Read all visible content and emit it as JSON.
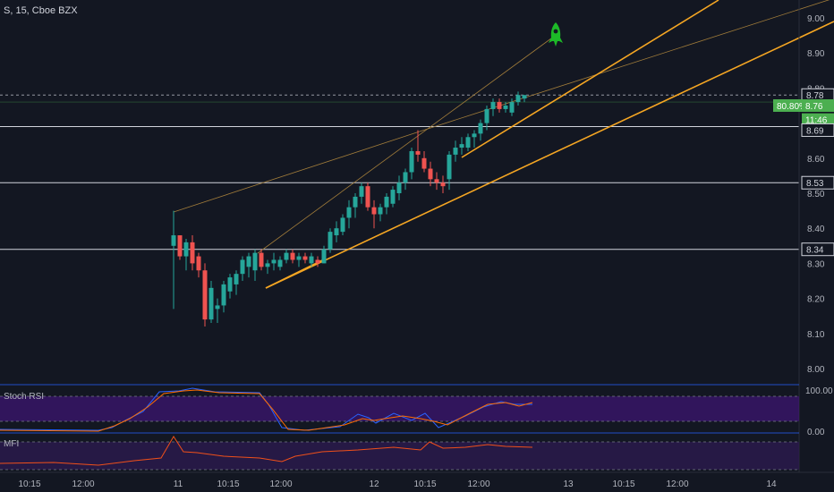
{
  "symbol_title": "S, 15, Cboe BZX",
  "colors": {
    "background": "#131722",
    "up": "#26a69a",
    "down": "#ef5350",
    "channel": "#f5a623",
    "fib_line": "#a17c3a",
    "hline": "#d1d4dc",
    "stoch_k": "#2962ff",
    "stoch_d": "#ff6d00",
    "stoch_band": "#4a148c",
    "mfi_line": "#f0501a",
    "mfi_band": "#2d1b52",
    "pct_badge": "#4caf50",
    "rocket": "#1db928"
  },
  "price_axis": {
    "ticks": [
      "9.00",
      "8.90",
      "8.80",
      "8.70",
      "8.60",
      "8.50",
      "8.40",
      "8.30",
      "8.20",
      "8.10",
      "8.00"
    ],
    "price_labels": [
      {
        "text": "8.78",
        "style": "box"
      },
      {
        "text": "80.80%",
        "style": "badge"
      },
      {
        "text": "8.76",
        "style": "badge"
      },
      {
        "text": "11:46",
        "style": "badge"
      },
      {
        "text": "8.69",
        "style": "box"
      },
      {
        "text": "8.53",
        "style": "box"
      },
      {
        "text": "8.34",
        "style": "box"
      }
    ]
  },
  "time_axis": {
    "ticks": [
      "10:15",
      "12:00",
      "11",
      "10:15",
      "12:00",
      "12",
      "10:15",
      "12:00",
      "13",
      "10:15",
      "12:00",
      "14"
    ]
  },
  "stoch_rsi": {
    "label": "Stoch RSI",
    "axis_ticks": [
      "100.00",
      "0.00"
    ]
  },
  "mfi": {
    "label": "MFI"
  },
  "chart_data": {
    "type": "candlestick",
    "title": "S, 15, Cboe BZX",
    "ylim": [
      8.0,
      9.05
    ],
    "horizontal_levels": [
      8.78,
      8.69,
      8.53,
      8.34
    ],
    "ohlc": [
      [
        8.35,
        8.45,
        8.17,
        8.38
      ],
      [
        8.38,
        8.38,
        8.31,
        8.32
      ],
      [
        8.32,
        8.37,
        8.28,
        8.36
      ],
      [
        8.36,
        8.38,
        8.28,
        8.3
      ],
      [
        8.32,
        8.33,
        8.26,
        8.28
      ],
      [
        8.28,
        8.3,
        8.12,
        8.14
      ],
      [
        8.14,
        8.25,
        8.13,
        8.23
      ],
      [
        8.17,
        8.2,
        8.13,
        8.18
      ],
      [
        8.18,
        8.25,
        8.16,
        8.24
      ],
      [
        8.22,
        8.27,
        8.2,
        8.26
      ],
      [
        8.24,
        8.28,
        8.21,
        8.27
      ],
      [
        8.27,
        8.32,
        8.25,
        8.31
      ],
      [
        8.29,
        8.33,
        8.26,
        8.32
      ],
      [
        8.28,
        8.34,
        8.25,
        8.33
      ],
      [
        8.33,
        8.34,
        8.28,
        8.29
      ],
      [
        8.29,
        8.31,
        8.27,
        8.3
      ],
      [
        8.3,
        8.33,
        8.28,
        8.31
      ],
      [
        8.29,
        8.32,
        8.28,
        8.31
      ],
      [
        8.31,
        8.34,
        8.3,
        8.33
      ],
      [
        8.33,
        8.34,
        8.3,
        8.31
      ],
      [
        8.31,
        8.33,
        8.29,
        8.32
      ],
      [
        8.32,
        8.33,
        8.3,
        8.31
      ],
      [
        8.3,
        8.33,
        8.29,
        8.32
      ],
      [
        8.31,
        8.32,
        8.29,
        8.3
      ],
      [
        8.3,
        8.35,
        8.3,
        8.34
      ],
      [
        8.34,
        8.4,
        8.33,
        8.39
      ],
      [
        8.38,
        8.42,
        8.36,
        8.4
      ],
      [
        8.39,
        8.44,
        8.38,
        8.43
      ],
      [
        8.43,
        8.48,
        8.4,
        8.46
      ],
      [
        8.46,
        8.5,
        8.43,
        8.49
      ],
      [
        8.49,
        8.53,
        8.47,
        8.52
      ],
      [
        8.52,
        8.53,
        8.45,
        8.46
      ],
      [
        8.46,
        8.48,
        8.4,
        8.44
      ],
      [
        8.44,
        8.47,
        8.42,
        8.46
      ],
      [
        8.46,
        8.5,
        8.44,
        8.49
      ],
      [
        8.47,
        8.52,
        8.46,
        8.51
      ],
      [
        8.5,
        8.55,
        8.48,
        8.53
      ],
      [
        8.53,
        8.57,
        8.51,
        8.56
      ],
      [
        8.56,
        8.63,
        8.54,
        8.62
      ],
      [
        8.62,
        8.68,
        8.59,
        8.61
      ],
      [
        8.6,
        8.62,
        8.56,
        8.57
      ],
      [
        8.57,
        8.59,
        8.52,
        8.54
      ],
      [
        8.54,
        8.56,
        8.51,
        8.53
      ],
      [
        8.53,
        8.55,
        8.5,
        8.52
      ],
      [
        8.54,
        8.62,
        8.51,
        8.61
      ],
      [
        8.61,
        8.65,
        8.59,
        8.63
      ],
      [
        8.63,
        8.66,
        8.61,
        8.64
      ],
      [
        8.63,
        8.67,
        8.62,
        8.66
      ],
      [
        8.66,
        8.68,
        8.63,
        8.67
      ],
      [
        8.67,
        8.71,
        8.65,
        8.7
      ],
      [
        8.7,
        8.75,
        8.68,
        8.74
      ],
      [
        8.74,
        8.77,
        8.72,
        8.76
      ],
      [
        8.76,
        8.77,
        8.73,
        8.74
      ],
      [
        8.74,
        8.76,
        8.73,
        8.75
      ],
      [
        8.73,
        8.77,
        8.72,
        8.76
      ],
      [
        8.76,
        8.79,
        8.75,
        8.78
      ],
      [
        8.77,
        8.78,
        8.76,
        8.78
      ]
    ]
  }
}
